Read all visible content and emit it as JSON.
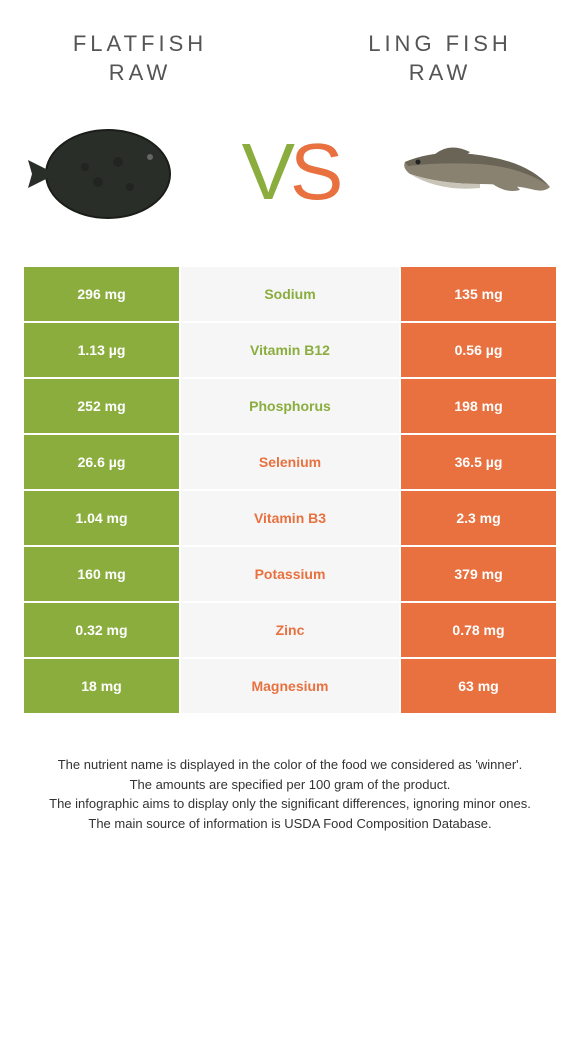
{
  "left_title_l1": "FLATFISH",
  "left_title_l2": "RAW",
  "right_title_l1": "LING FISH",
  "right_title_l2": "RAW",
  "vs_v": "V",
  "vs_s": "S",
  "colors": {
    "green": "#8aad3e",
    "orange": "#e8713f",
    "mid_bg": "#f6f6f6",
    "text": "#555"
  },
  "rows": [
    {
      "left": "296 mg",
      "label": "Sodium",
      "right": "135 mg",
      "winner": "left"
    },
    {
      "left": "1.13 µg",
      "label": "Vitamin B12",
      "right": "0.56 µg",
      "winner": "left"
    },
    {
      "left": "252 mg",
      "label": "Phosphorus",
      "right": "198 mg",
      "winner": "left"
    },
    {
      "left": "26.6 µg",
      "label": "Selenium",
      "right": "36.5 µg",
      "winner": "right"
    },
    {
      "left": "1.04 mg",
      "label": "Vitamin B3",
      "right": "2.3 mg",
      "winner": "right"
    },
    {
      "left": "160 mg",
      "label": "Potassium",
      "right": "379 mg",
      "winner": "right"
    },
    {
      "left": "0.32 mg",
      "label": "Zinc",
      "right": "0.78 mg",
      "winner": "right"
    },
    {
      "left": "18 mg",
      "label": "Magnesium",
      "right": "63 mg",
      "winner": "right"
    }
  ],
  "footer_l1": "The nutrient name is displayed in the color of the food we considered as 'winner'.",
  "footer_l2": "The amounts are specified per 100 gram of the product.",
  "footer_l3": "The infographic aims to display only the significant differences, ignoring minor ones.",
  "footer_l4": "The main source of information is USDA Food Composition Database."
}
